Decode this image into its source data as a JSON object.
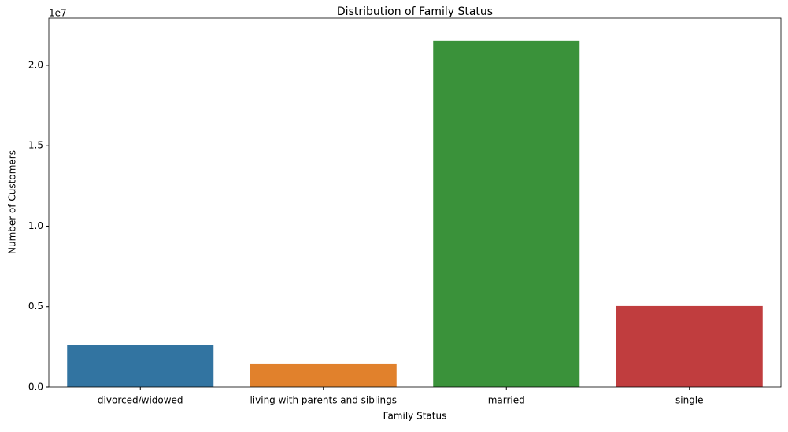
{
  "chart_data": {
    "type": "bar",
    "title": "Distribution of Family Status",
    "x_label": "Family Status",
    "y_label": "Number of Customers",
    "y_offset_label": "1e7",
    "categories": [
      "divorced/widowed",
      "living with parents and siblings",
      "married",
      "single"
    ],
    "values": [
      2640000,
      1470000,
      21520000,
      5040000
    ],
    "colors": [
      "#3274a1",
      "#e1812c",
      "#3a923a",
      "#c03d3e"
    ],
    "ylim": [
      0,
      22930000
    ],
    "yticks": [
      {
        "value": 0,
        "label": "0.0"
      },
      {
        "value": 5000000,
        "label": "0.5"
      },
      {
        "value": 10000000,
        "label": "1.0"
      },
      {
        "value": 15000000,
        "label": "1.5"
      },
      {
        "value": 20000000,
        "label": "2.0"
      }
    ],
    "grid": false
  }
}
